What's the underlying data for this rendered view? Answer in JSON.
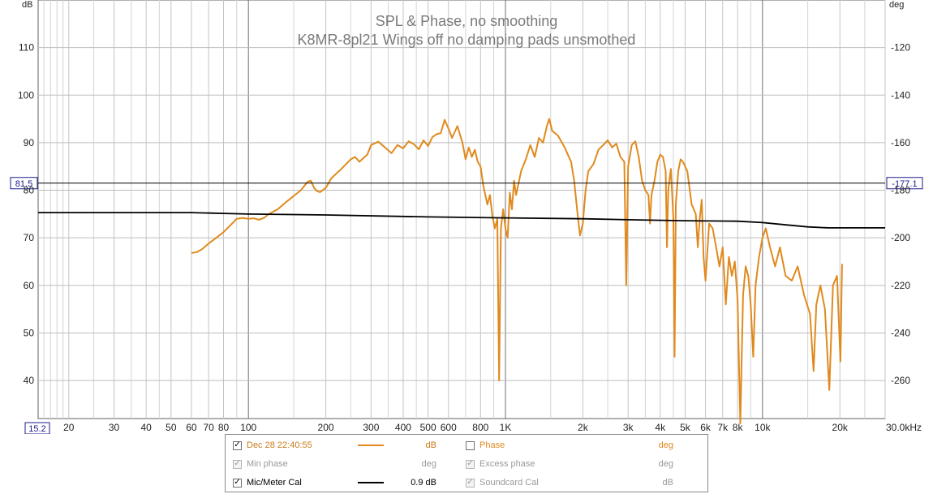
{
  "chart_data": {
    "type": "line",
    "title": "SPL & Phase, no smoothing",
    "subtitle": "K8MR-8pl21 Wings off no damping pads unsmothed",
    "xscale": "log",
    "xlim": [
      15.2,
      30000
    ],
    "ylim": [
      32,
      120
    ],
    "ylabel": "dB",
    "y2label": "deg",
    "y2lim": [
      -276,
      -100
    ],
    "x_ticks": [
      {
        "v": 20,
        "label": "20"
      },
      {
        "v": 30,
        "label": "30"
      },
      {
        "v": 40,
        "label": "40"
      },
      {
        "v": 50,
        "label": "50"
      },
      {
        "v": 60,
        "label": "60"
      },
      {
        "v": 70,
        "label": "70"
      },
      {
        "v": 80,
        "label": "80"
      },
      {
        "v": 100,
        "label": "100"
      },
      {
        "v": 200,
        "label": "200"
      },
      {
        "v": 300,
        "label": "300"
      },
      {
        "v": 400,
        "label": "400"
      },
      {
        "v": 500,
        "label": "500"
      },
      {
        "v": 600,
        "label": "600"
      },
      {
        "v": 800,
        "label": "800"
      },
      {
        "v": 1000,
        "label": "1K"
      },
      {
        "v": 2000,
        "label": "2k"
      },
      {
        "v": 3000,
        "label": "3k"
      },
      {
        "v": 4000,
        "label": "4k"
      },
      {
        "v": 5000,
        "label": "5k"
      },
      {
        "v": 6000,
        "label": "6k"
      },
      {
        "v": 7000,
        "label": "7k"
      },
      {
        "v": 8000,
        "label": "8k"
      },
      {
        "v": 10000,
        "label": "10k"
      },
      {
        "v": 20000,
        "label": "20k"
      },
      {
        "v": 30000,
        "label": "30.0kHz"
      }
    ],
    "x_minor": [
      16,
      17,
      18,
      19,
      25,
      35,
      45,
      90,
      150,
      250,
      350,
      450,
      700,
      900,
      1500,
      2500,
      3500,
      4500,
      9000,
      15000,
      25000
    ],
    "x_major": [
      100,
      1000,
      10000
    ],
    "y_ticks": [
      40,
      50,
      60,
      70,
      80,
      90,
      100,
      110
    ],
    "y2_ticks": [
      -260,
      -240,
      -220,
      -200,
      -180,
      -160,
      -140,
      -120
    ],
    "cursor": {
      "x_label": "15.2",
      "y_value": 81.5,
      "y_label": "81.5",
      "y2_label": "-177.1"
    },
    "grid": true,
    "series": [
      {
        "name": "Dec 28 22:40:55",
        "color": "#e08a1e",
        "points": [
          [
            60,
            66.8
          ],
          [
            63,
            67.0
          ],
          [
            66,
            67.6
          ],
          [
            70,
            68.8
          ],
          [
            75,
            70.0
          ],
          [
            80,
            71.2
          ],
          [
            85,
            72.6
          ],
          [
            90,
            74.0
          ],
          [
            95,
            74.2
          ],
          [
            100,
            74.0
          ],
          [
            105,
            74.1
          ],
          [
            110,
            73.8
          ],
          [
            115,
            74.2
          ],
          [
            120,
            75.0
          ],
          [
            130,
            76.0
          ],
          [
            140,
            77.5
          ],
          [
            150,
            78.8
          ],
          [
            160,
            80.0
          ],
          [
            170,
            81.8
          ],
          [
            175,
            82.0
          ],
          [
            180,
            80.5
          ],
          [
            185,
            79.8
          ],
          [
            190,
            79.6
          ],
          [
            200,
            80.5
          ],
          [
            210,
            82.5
          ],
          [
            230,
            84.5
          ],
          [
            250,
            86.5
          ],
          [
            260,
            87.0
          ],
          [
            270,
            86.0
          ],
          [
            290,
            87.5
          ],
          [
            300,
            89.5
          ],
          [
            320,
            90.2
          ],
          [
            340,
            89.0
          ],
          [
            360,
            87.8
          ],
          [
            380,
            89.5
          ],
          [
            400,
            88.8
          ],
          [
            420,
            90.3
          ],
          [
            440,
            89.7
          ],
          [
            460,
            88.6
          ],
          [
            480,
            90.5
          ],
          [
            500,
            89.3
          ],
          [
            520,
            91.2
          ],
          [
            540,
            91.8
          ],
          [
            560,
            92.0
          ],
          [
            580,
            94.8
          ],
          [
            600,
            93.0
          ],
          [
            620,
            91.0
          ],
          [
            650,
            93.5
          ],
          [
            680,
            90.0
          ],
          [
            700,
            86.5
          ],
          [
            720,
            89.0
          ],
          [
            740,
            87.0
          ],
          [
            760,
            88.5
          ],
          [
            780,
            86.0
          ],
          [
            800,
            85.0
          ],
          [
            820,
            81.0
          ],
          [
            850,
            77.0
          ],
          [
            870,
            79.0
          ],
          [
            890,
            74.5
          ],
          [
            910,
            72.0
          ],
          [
            930,
            74.0
          ],
          [
            945,
            40.0
          ],
          [
            960,
            72.0
          ],
          [
            980,
            76.0
          ],
          [
            1000,
            72.0
          ],
          [
            1020,
            70.0
          ],
          [
            1040,
            79.5
          ],
          [
            1060,
            76.0
          ],
          [
            1080,
            82.0
          ],
          [
            1100,
            79.0
          ],
          [
            1150,
            84.0
          ],
          [
            1200,
            86.5
          ],
          [
            1250,
            89.5
          ],
          [
            1300,
            87.0
          ],
          [
            1350,
            91.0
          ],
          [
            1400,
            90.0
          ],
          [
            1450,
            93.5
          ],
          [
            1480,
            95.0
          ],
          [
            1520,
            92.5
          ],
          [
            1600,
            91.5
          ],
          [
            1700,
            89.0
          ],
          [
            1800,
            86.0
          ],
          [
            1850,
            82.0
          ],
          [
            1900,
            76.0
          ],
          [
            1950,
            70.5
          ],
          [
            2000,
            73.0
          ],
          [
            2050,
            80.0
          ],
          [
            2100,
            84.0
          ],
          [
            2200,
            85.5
          ],
          [
            2300,
            88.5
          ],
          [
            2400,
            89.5
          ],
          [
            2500,
            90.5
          ],
          [
            2600,
            89.0
          ],
          [
            2700,
            89.8
          ],
          [
            2800,
            87.0
          ],
          [
            2900,
            86.0
          ],
          [
            2950,
            60.0
          ],
          [
            3000,
            85.0
          ],
          [
            3100,
            89.5
          ],
          [
            3200,
            90.3
          ],
          [
            3300,
            87.0
          ],
          [
            3400,
            82.0
          ],
          [
            3500,
            80.0
          ],
          [
            3600,
            79.0
          ],
          [
            3650,
            73.0
          ],
          [
            3700,
            79.0
          ],
          [
            3800,
            82.0
          ],
          [
            3900,
            86.0
          ],
          [
            4000,
            87.5
          ],
          [
            4100,
            87.0
          ],
          [
            4200,
            84.0
          ],
          [
            4250,
            68.0
          ],
          [
            4300,
            80.0
          ],
          [
            4400,
            84.5
          ],
          [
            4500,
            74.0
          ],
          [
            4550,
            45.0
          ],
          [
            4600,
            77.0
          ],
          [
            4700,
            84.0
          ],
          [
            4800,
            86.5
          ],
          [
            4900,
            86.0
          ],
          [
            5000,
            85.0
          ],
          [
            5100,
            84.0
          ],
          [
            5300,
            77.0
          ],
          [
            5500,
            75.0
          ],
          [
            5600,
            68.0
          ],
          [
            5700,
            74.0
          ],
          [
            5800,
            78.0
          ],
          [
            5900,
            66.0
          ],
          [
            6000,
            61.0
          ],
          [
            6200,
            73.0
          ],
          [
            6400,
            72.0
          ],
          [
            6600,
            68.0
          ],
          [
            6800,
            64.0
          ],
          [
            7000,
            68.0
          ],
          [
            7200,
            56.0
          ],
          [
            7400,
            66.0
          ],
          [
            7600,
            62.0
          ],
          [
            7800,
            65.0
          ],
          [
            8000,
            57.0
          ],
          [
            8200,
            31.0
          ],
          [
            8400,
            58.0
          ],
          [
            8600,
            64.0
          ],
          [
            8800,
            62.0
          ],
          [
            9000,
            56.0
          ],
          [
            9200,
            45.0
          ],
          [
            9400,
            60.0
          ],
          [
            9700,
            66.0
          ],
          [
            10000,
            70.0
          ],
          [
            10300,
            72.0
          ],
          [
            10700,
            68.0
          ],
          [
            11200,
            64.0
          ],
          [
            11700,
            68.0
          ],
          [
            12300,
            62.0
          ],
          [
            13000,
            61.0
          ],
          [
            13700,
            64.0
          ],
          [
            14500,
            58.0
          ],
          [
            15300,
            54.0
          ],
          [
            15800,
            42.0
          ],
          [
            16200,
            56.0
          ],
          [
            16800,
            60.0
          ],
          [
            17500,
            55.0
          ],
          [
            18200,
            38.0
          ],
          [
            18800,
            60.0
          ],
          [
            19500,
            62.0
          ],
          [
            20100,
            44.0
          ],
          [
            20400,
            64.5
          ]
        ]
      },
      {
        "name": "Mic/Meter Cal",
        "color": "#000000",
        "points": [
          [
            15.2,
            75.3
          ],
          [
            40,
            75.3
          ],
          [
            60,
            75.3
          ],
          [
            100,
            75.0
          ],
          [
            200,
            74.8
          ],
          [
            500,
            74.4
          ],
          [
            1000,
            74.2
          ],
          [
            2000,
            74.0
          ],
          [
            3000,
            73.8
          ],
          [
            5000,
            73.6
          ],
          [
            8000,
            73.5
          ],
          [
            10000,
            73.2
          ],
          [
            12000,
            72.8
          ],
          [
            15000,
            72.3
          ],
          [
            18000,
            72.1
          ],
          [
            30000,
            72.1
          ]
        ]
      }
    ]
  },
  "legend": {
    "rows": [
      [
        {
          "label": "Dec 28 22:40:55",
          "checked": true,
          "enabled": true,
          "label_color": "#c87a19",
          "swatch": "#e08a1e",
          "value": "dB",
          "value_color": "#c87a19"
        },
        {
          "label": "Phase",
          "checked": false,
          "enabled": true,
          "label_color": "#e08a1e",
          "value": "deg",
          "value_color": "#e08a1e"
        }
      ],
      [
        {
          "label": "Min phase",
          "checked": true,
          "enabled": false,
          "label_color": "#9a9a9a",
          "value": "deg",
          "value_color": "#9a9a9a"
        },
        {
          "label": "Excess phase",
          "checked": true,
          "enabled": false,
          "label_color": "#9a9a9a",
          "value": "deg",
          "value_color": "#9a9a9a"
        }
      ],
      [
        {
          "label": "Mic/Meter Cal",
          "checked": true,
          "enabled": true,
          "label_color": "#000000",
          "swatch": "#000000",
          "value": "0.9 dB",
          "value_color": "#000000"
        },
        {
          "label": "Soundcard Cal",
          "checked": true,
          "enabled": false,
          "label_color": "#9a9a9a",
          "value": "dB",
          "value_color": "#9a9a9a"
        }
      ]
    ]
  }
}
